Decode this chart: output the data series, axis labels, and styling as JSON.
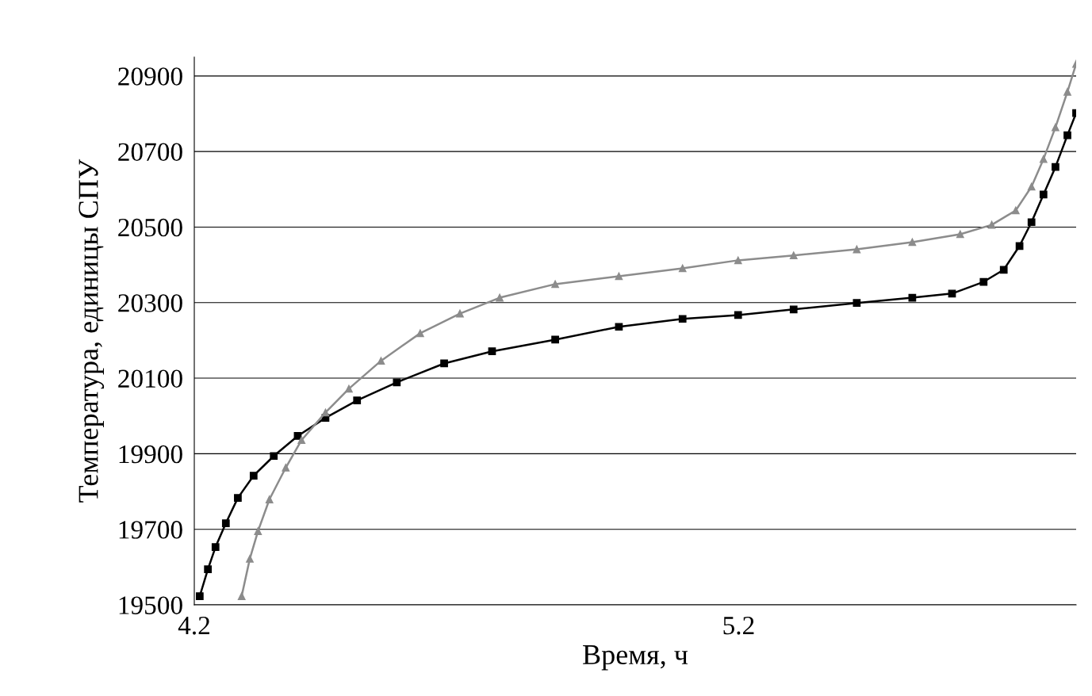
{
  "chart_data": {
    "type": "line",
    "xlabel": "Время, ч",
    "ylabel": "Температура, единицы СПУ",
    "xlim": [
      4.2,
      5.82
    ],
    "xticks": [
      4.2,
      5.2
    ],
    "ylim": [
      19500,
      20950
    ],
    "yticks": [
      19500,
      19700,
      19900,
      20100,
      20300,
      20500,
      20700,
      20900
    ],
    "grid": "y",
    "legend": false,
    "line_style": "solid",
    "series": [
      {
        "color": "#000000",
        "marker": "square",
        "x": [
          4.21,
          4.225,
          4.239,
          4.258,
          4.28,
          4.309,
          4.346,
          4.39,
          4.441,
          4.499,
          4.572,
          4.659,
          4.747,
          4.863,
          4.98,
          5.097,
          5.199,
          5.301,
          5.417,
          5.519,
          5.592,
          5.65,
          5.687,
          5.716,
          5.738,
          5.76,
          5.782,
          5.804,
          5.82
        ],
        "values": [
          19523,
          19594,
          19653,
          19716,
          19783,
          19842,
          19894,
          19947,
          19995,
          20041,
          20089,
          20139,
          20171,
          20202,
          20236,
          20257,
          20267,
          20282,
          20299,
          20313,
          20324,
          20355,
          20387,
          20450,
          20513,
          20586,
          20659,
          20743,
          20802
        ]
      },
      {
        "color": "#8c8c8c",
        "marker": "triangle",
        "x": [
          4.287,
          4.302,
          4.317,
          4.338,
          4.368,
          4.397,
          4.441,
          4.484,
          4.543,
          4.615,
          4.688,
          4.761,
          4.863,
          4.98,
          5.097,
          5.199,
          5.301,
          5.417,
          5.519,
          5.607,
          5.665,
          5.709,
          5.738,
          5.76,
          5.782,
          5.804,
          5.82
        ],
        "values": [
          19523,
          19622,
          19695,
          19779,
          19863,
          19936,
          20009,
          20072,
          20146,
          20219,
          20271,
          20313,
          20349,
          20370,
          20391,
          20412,
          20425,
          20441,
          20460,
          20481,
          20506,
          20544,
          20607,
          20680,
          20764,
          20858,
          20932
        ]
      }
    ]
  }
}
